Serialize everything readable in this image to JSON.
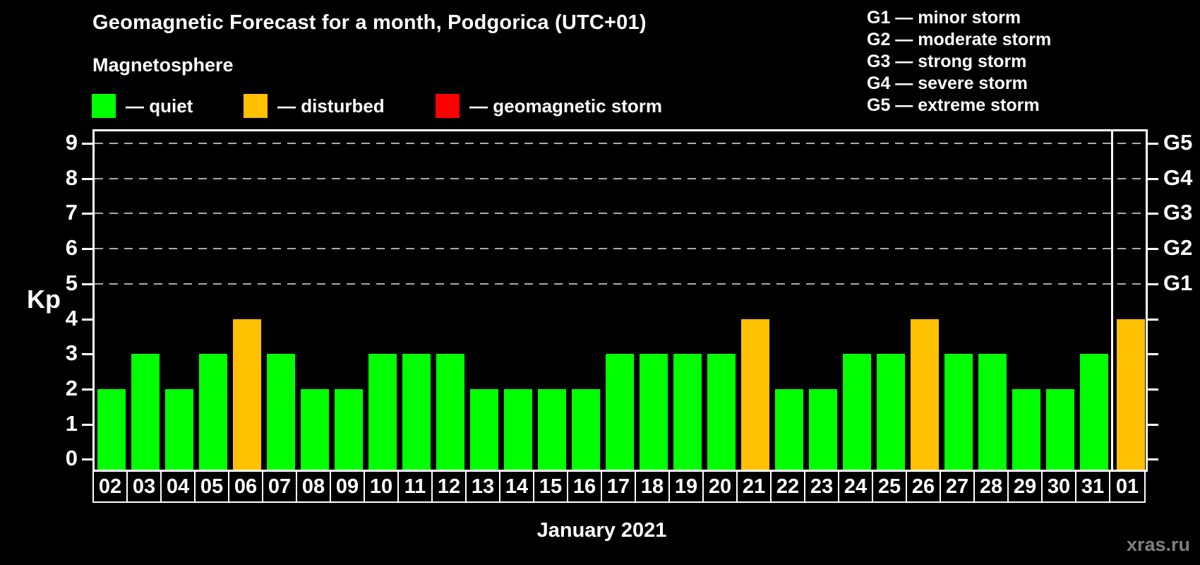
{
  "title": "Geomagnetic Forecast for a month, Podgorica (UTC+01)",
  "subtitle": "Magnetosphere",
  "legend": {
    "items": [
      {
        "key": "quiet",
        "label": "— quiet",
        "color": "#00ff00"
      },
      {
        "key": "disturbed",
        "label": "— disturbed",
        "color": "#ffc000"
      },
      {
        "key": "storm",
        "label": "— geomagnetic storm",
        "color": "#ff0000"
      }
    ]
  },
  "g_legend": [
    "G1 — minor storm",
    "G2 — moderate storm",
    "G3 — strong storm",
    "G4 — severe storm",
    "G5 — extreme storm"
  ],
  "colors": {
    "quiet": "#00ff00",
    "disturbed": "#ffc000",
    "storm": "#ff0000"
  },
  "watermark": "xras.ru",
  "chart_data": {
    "type": "bar",
    "title": "Geomagnetic Forecast for a month, Podgorica (UTC+01)",
    "xlabel": "January 2021",
    "ylabel": "Kp",
    "ylim": [
      0,
      9
    ],
    "yticks": [
      0,
      1,
      2,
      3,
      4,
      5,
      6,
      7,
      8,
      9
    ],
    "gridlines_at": [
      5,
      6,
      7,
      8,
      9
    ],
    "grid": "dashed",
    "right_axis_labels": [
      {
        "label": "G1",
        "kp": 5
      },
      {
        "label": "G2",
        "kp": 6
      },
      {
        "label": "G3",
        "kp": 7
      },
      {
        "label": "G4",
        "kp": 8
      },
      {
        "label": "G5",
        "kp": 9
      }
    ],
    "separator_before_index": 30,
    "categories": [
      "02",
      "03",
      "04",
      "05",
      "06",
      "07",
      "08",
      "09",
      "10",
      "11",
      "12",
      "13",
      "14",
      "15",
      "16",
      "17",
      "18",
      "19",
      "20",
      "21",
      "22",
      "23",
      "24",
      "25",
      "26",
      "27",
      "28",
      "29",
      "30",
      "31",
      "01"
    ],
    "values": [
      2,
      3,
      2,
      3,
      4,
      3,
      2,
      2,
      3,
      3,
      3,
      2,
      2,
      2,
      2,
      3,
      3,
      3,
      3,
      4,
      2,
      2,
      3,
      3,
      4,
      3,
      3,
      2,
      2,
      3,
      4
    ],
    "statuses": [
      "quiet",
      "quiet",
      "quiet",
      "quiet",
      "disturbed",
      "quiet",
      "quiet",
      "quiet",
      "quiet",
      "quiet",
      "quiet",
      "quiet",
      "quiet",
      "quiet",
      "quiet",
      "quiet",
      "quiet",
      "quiet",
      "quiet",
      "disturbed",
      "quiet",
      "quiet",
      "quiet",
      "quiet",
      "disturbed",
      "quiet",
      "quiet",
      "quiet",
      "quiet",
      "quiet",
      "disturbed"
    ]
  }
}
